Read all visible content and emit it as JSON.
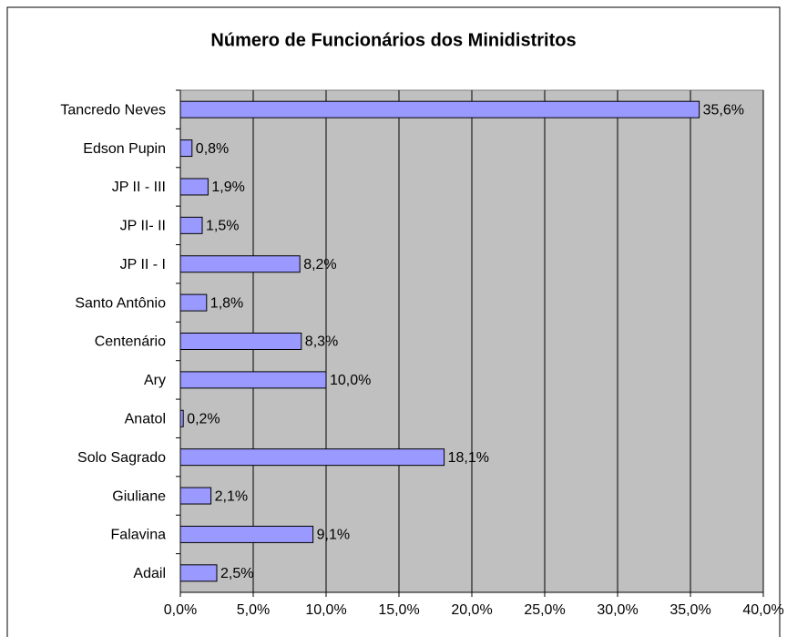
{
  "chart_data": {
    "type": "bar",
    "orientation": "horizontal",
    "title": "Número de Funcionários dos Minidistritos",
    "categories": [
      "Tancredo Neves",
      "Edson Pupin",
      "JP II - III",
      "JP II- II",
      "JP II - I",
      "Santo Antônio",
      "Centenário",
      "Ary",
      "Anatol",
      "Solo Sagrado",
      "Giuliane",
      "Falavina",
      "Adail"
    ],
    "values": [
      35.6,
      0.8,
      1.9,
      1.5,
      8.2,
      1.8,
      8.3,
      10.0,
      0.2,
      18.1,
      2.1,
      9.1,
      2.5
    ],
    "value_labels": [
      "35,6%",
      "0,8%",
      "1,9%",
      "1,5%",
      "8,2%",
      "1,8%",
      "8,3%",
      "10,0%",
      "0,2%",
      "18,1%",
      "2,1%",
      "9,1%",
      "2,5%"
    ],
    "color": "#9999ff",
    "xlim": [
      0,
      40
    ],
    "xticks": [
      {
        "value": 0,
        "label": "0,0%"
      },
      {
        "value": 5,
        "label": "5,0%"
      },
      {
        "value": 10,
        "label": "10,0%"
      },
      {
        "value": 15,
        "label": "15,0%"
      },
      {
        "value": 20,
        "label": "20,0%"
      },
      {
        "value": 25,
        "label": "25,0%"
      },
      {
        "value": 30,
        "label": "30,0%"
      },
      {
        "value": 35,
        "label": "35,0%"
      },
      {
        "value": 40,
        "label": "40,0%"
      }
    ],
    "grid": true
  }
}
